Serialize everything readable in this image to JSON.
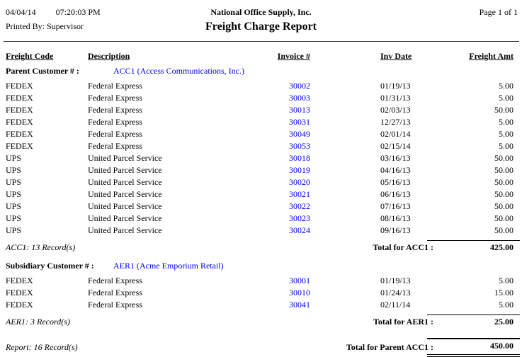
{
  "page_header": {
    "date": "04/04/14",
    "time": "07:20:03 PM",
    "printed_by": "Printed By: Supervisor",
    "company": "National Office Supply, Inc.",
    "title": "Freight Charge Report",
    "page_info": "Page 1 of 1"
  },
  "table": {
    "columns": {
      "code": "Freight Code",
      "description": "Description",
      "invoice": "Invoice #",
      "date": "Inv Date",
      "amount": "Freight Amt"
    },
    "groups": [
      {
        "type_label": "Parent Customer # :",
        "customer_link": "ACC1 (Access Communications, Inc.)",
        "rows": [
          {
            "code": "FEDEX",
            "description": "Federal Express",
            "invoice": "30002",
            "date": "01/19/13",
            "amount": "5.00"
          },
          {
            "code": "FEDEX",
            "description": "Federal Express",
            "invoice": "30003",
            "date": "01/31/13",
            "amount": "5.00"
          },
          {
            "code": "FEDEX",
            "description": "Federal Express",
            "invoice": "30013",
            "date": "02/03/13",
            "amount": "50.00"
          },
          {
            "code": "FEDEX",
            "description": "Federal Express",
            "invoice": "30031",
            "date": "12/27/13",
            "amount": "5.00"
          },
          {
            "code": "FEDEX",
            "description": "Federal Express",
            "invoice": "30049",
            "date": "02/01/14",
            "amount": "5.00"
          },
          {
            "code": "FEDEX",
            "description": "Federal Express",
            "invoice": "30053",
            "date": "02/15/14",
            "amount": "5.00"
          },
          {
            "code": "UPS",
            "description": "United Parcel Service",
            "invoice": "30018",
            "date": "03/16/13",
            "amount": "50.00"
          },
          {
            "code": "UPS",
            "description": "United Parcel Service",
            "invoice": "30019",
            "date": "04/16/13",
            "amount": "50.00"
          },
          {
            "code": "UPS",
            "description": "United Parcel Service",
            "invoice": "30020",
            "date": "05/16/13",
            "amount": "50.00"
          },
          {
            "code": "UPS",
            "description": "United Parcel Service",
            "invoice": "30021",
            "date": "06/16/13",
            "amount": "50.00"
          },
          {
            "code": "UPS",
            "description": "United Parcel Service",
            "invoice": "30022",
            "date": "07/16/13",
            "amount": "50.00"
          },
          {
            "code": "UPS",
            "description": "United Parcel Service",
            "invoice": "30023",
            "date": "08/16/13",
            "amount": "50.00"
          },
          {
            "code": "UPS",
            "description": "United Parcel Service",
            "invoice": "30024",
            "date": "09/16/13",
            "amount": "50.00"
          }
        ],
        "records_note": "ACC1: 13 Record(s)",
        "total_label": "Total for ACC1 :",
        "total": "425.00"
      },
      {
        "type_label": "Subsidiary Customer # :",
        "customer_link": "AER1 (Acme Emporium Retail)",
        "rows": [
          {
            "code": "FEDEX",
            "description": "Federal Express",
            "invoice": "30001",
            "date": "01/19/13",
            "amount": "5.00"
          },
          {
            "code": "FEDEX",
            "description": "Federal Express",
            "invoice": "30010",
            "date": "01/24/13",
            "amount": "15.00"
          },
          {
            "code": "FEDEX",
            "description": "Federal Express",
            "invoice": "30041",
            "date": "02/11/14",
            "amount": "5.00"
          }
        ],
        "records_note": "AER1: 3 Record(s)",
        "total_label": "Total for AER1 :",
        "total": "25.00"
      }
    ],
    "report_footer": {
      "records_note": "Report: 16 Record(s)",
      "total_label": "Total for Parent ACC1 :",
      "total": "450.00"
    }
  },
  "colors": {
    "link_blue": "#0000EE",
    "text": "#000000",
    "background": "#FFFFFF"
  }
}
